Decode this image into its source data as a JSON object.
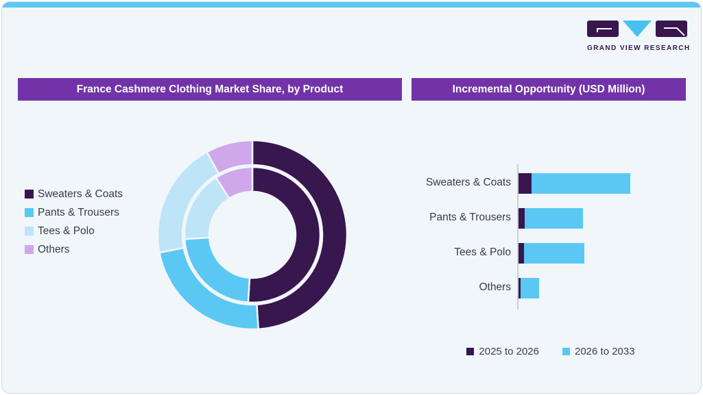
{
  "brand": {
    "name": "GRAND VIEW RESEARCH"
  },
  "colors": {
    "accent_bar": "#5bc8f3",
    "title_bar": "#7233a8",
    "dark_purple": "#38164e",
    "mid_blue": "#5bc8f3",
    "light_blue": "#bde4f7",
    "lavender": "#d0a7ea",
    "card_bg": "#f0f6fa",
    "axis_gray": "#c9cfd4",
    "text_dark": "#3a3a4c"
  },
  "panels": {
    "left_title": "France Cashmere Clothing Market Share, by Product",
    "right_title": "Incremental Opportunity (USD Million)"
  },
  "chart_data": [
    {
      "type": "pie",
      "subtype": "double-ring-donut",
      "title": "France Cashmere Clothing Market Share, by Product",
      "categories": [
        "Sweaters & Coats",
        "Pants & Trousers",
        "Tees & Polo",
        "Others"
      ],
      "colors": [
        "#38164e",
        "#5bc8f3",
        "#bde4f7",
        "#d0a7ea"
      ],
      "rings": [
        {
          "name": "outer",
          "share_pct": [
            49,
            23,
            20,
            8
          ]
        },
        {
          "name": "inner",
          "share_pct": [
            51,
            23,
            17,
            9
          ]
        }
      ],
      "legend_position": "left",
      "units": "percent (estimated from arc angles; no labels shown)"
    },
    {
      "type": "bar",
      "orientation": "horizontal",
      "stacked": true,
      "title": "Incremental Opportunity (USD Million)",
      "categories": [
        "Sweaters & Coats",
        "Pants & Trousers",
        "Tees & Polo",
        "Others"
      ],
      "series": [
        {
          "name": "2025 to 2026",
          "color": "#38164e",
          "values": [
            19,
            9,
            8,
            3
          ]
        },
        {
          "name": "2026 to 2033",
          "color": "#5bc8f3",
          "values": [
            144,
            85,
            88,
            27
          ]
        }
      ],
      "legend_position": "bottom",
      "units": "relative bar length (no axis values shown)"
    }
  ]
}
